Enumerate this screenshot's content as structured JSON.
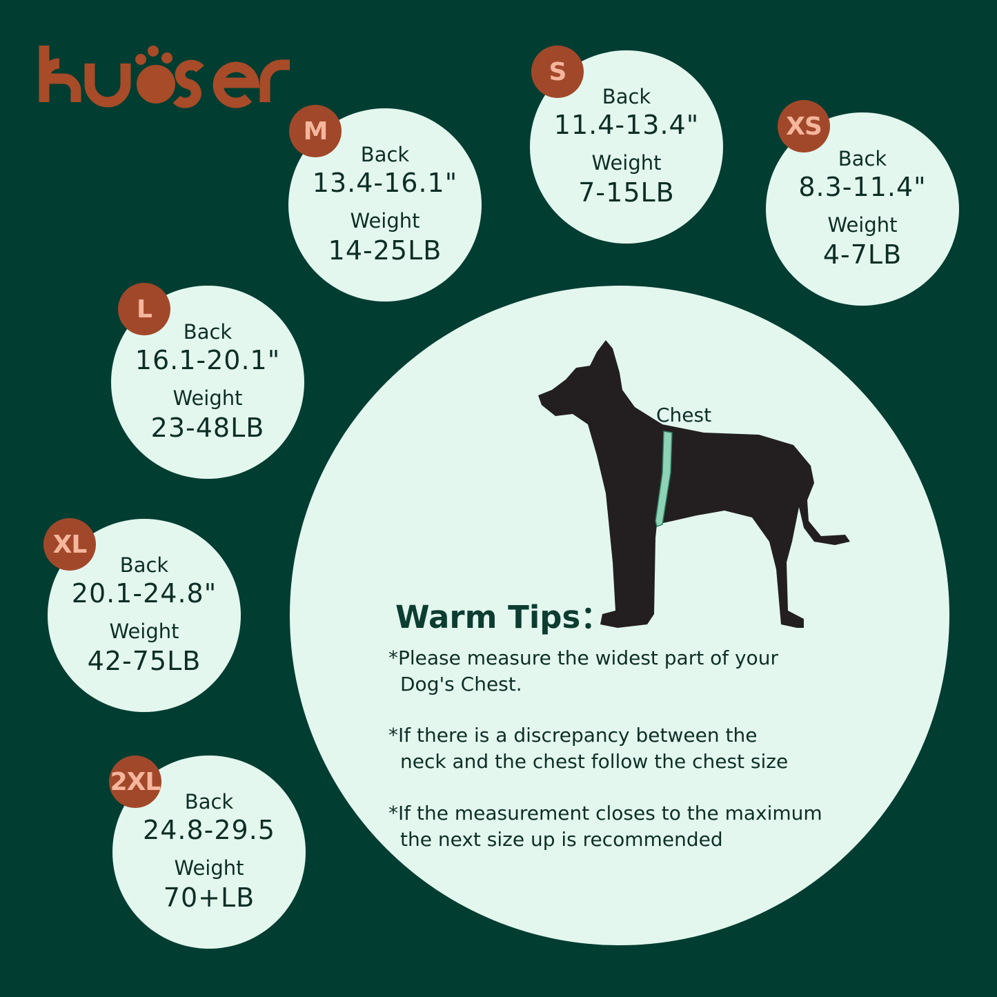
{
  "brand": {
    "logo_text": "kuoser",
    "color": "#a84b28"
  },
  "colors": {
    "background": "#023d31",
    "circle": "#e3f7ef",
    "badge": "#a2482a",
    "badge_text": "#f5b69c"
  },
  "sizes": [
    {
      "size": "M",
      "back_label": "Back",
      "back": "13.4-16.1\"",
      "weight_label": "Weight",
      "weight": "14-25LB"
    },
    {
      "size": "S",
      "back_label": "Back",
      "back": "11.4-13.4\"",
      "weight_label": "Weight",
      "weight": "7-15LB"
    },
    {
      "size": "XS",
      "back_label": "Back",
      "back": "8.3-11.4\"",
      "weight_label": "Weight",
      "weight": "4-7LB"
    },
    {
      "size": "L",
      "back_label": "Back",
      "back": "16.1-20.1\"",
      "weight_label": "Weight",
      "weight": "23-48LB"
    },
    {
      "size": "XL",
      "back_label": "Back",
      "back": "20.1-24.8\"",
      "weight_label": "Weight",
      "weight": "42-75LB"
    },
    {
      "size": "2XL",
      "back_label": "Back",
      "back": "24.8-29.5",
      "weight_label": "Weight",
      "weight": "70+LB"
    }
  ],
  "diagram": {
    "chest_label": "Chest"
  },
  "tips": {
    "title": "Warm Tips：",
    "items": [
      {
        "line1": "*Please measure the widest part of your",
        "line2": "Dog's Chest."
      },
      {
        "line1": "*If there is a discrepancy between the",
        "line2": "neck and the chest follow the chest size"
      },
      {
        "line1": "*If the measurement closes to the maximum",
        "line2": "the next size up is recommended"
      }
    ]
  }
}
